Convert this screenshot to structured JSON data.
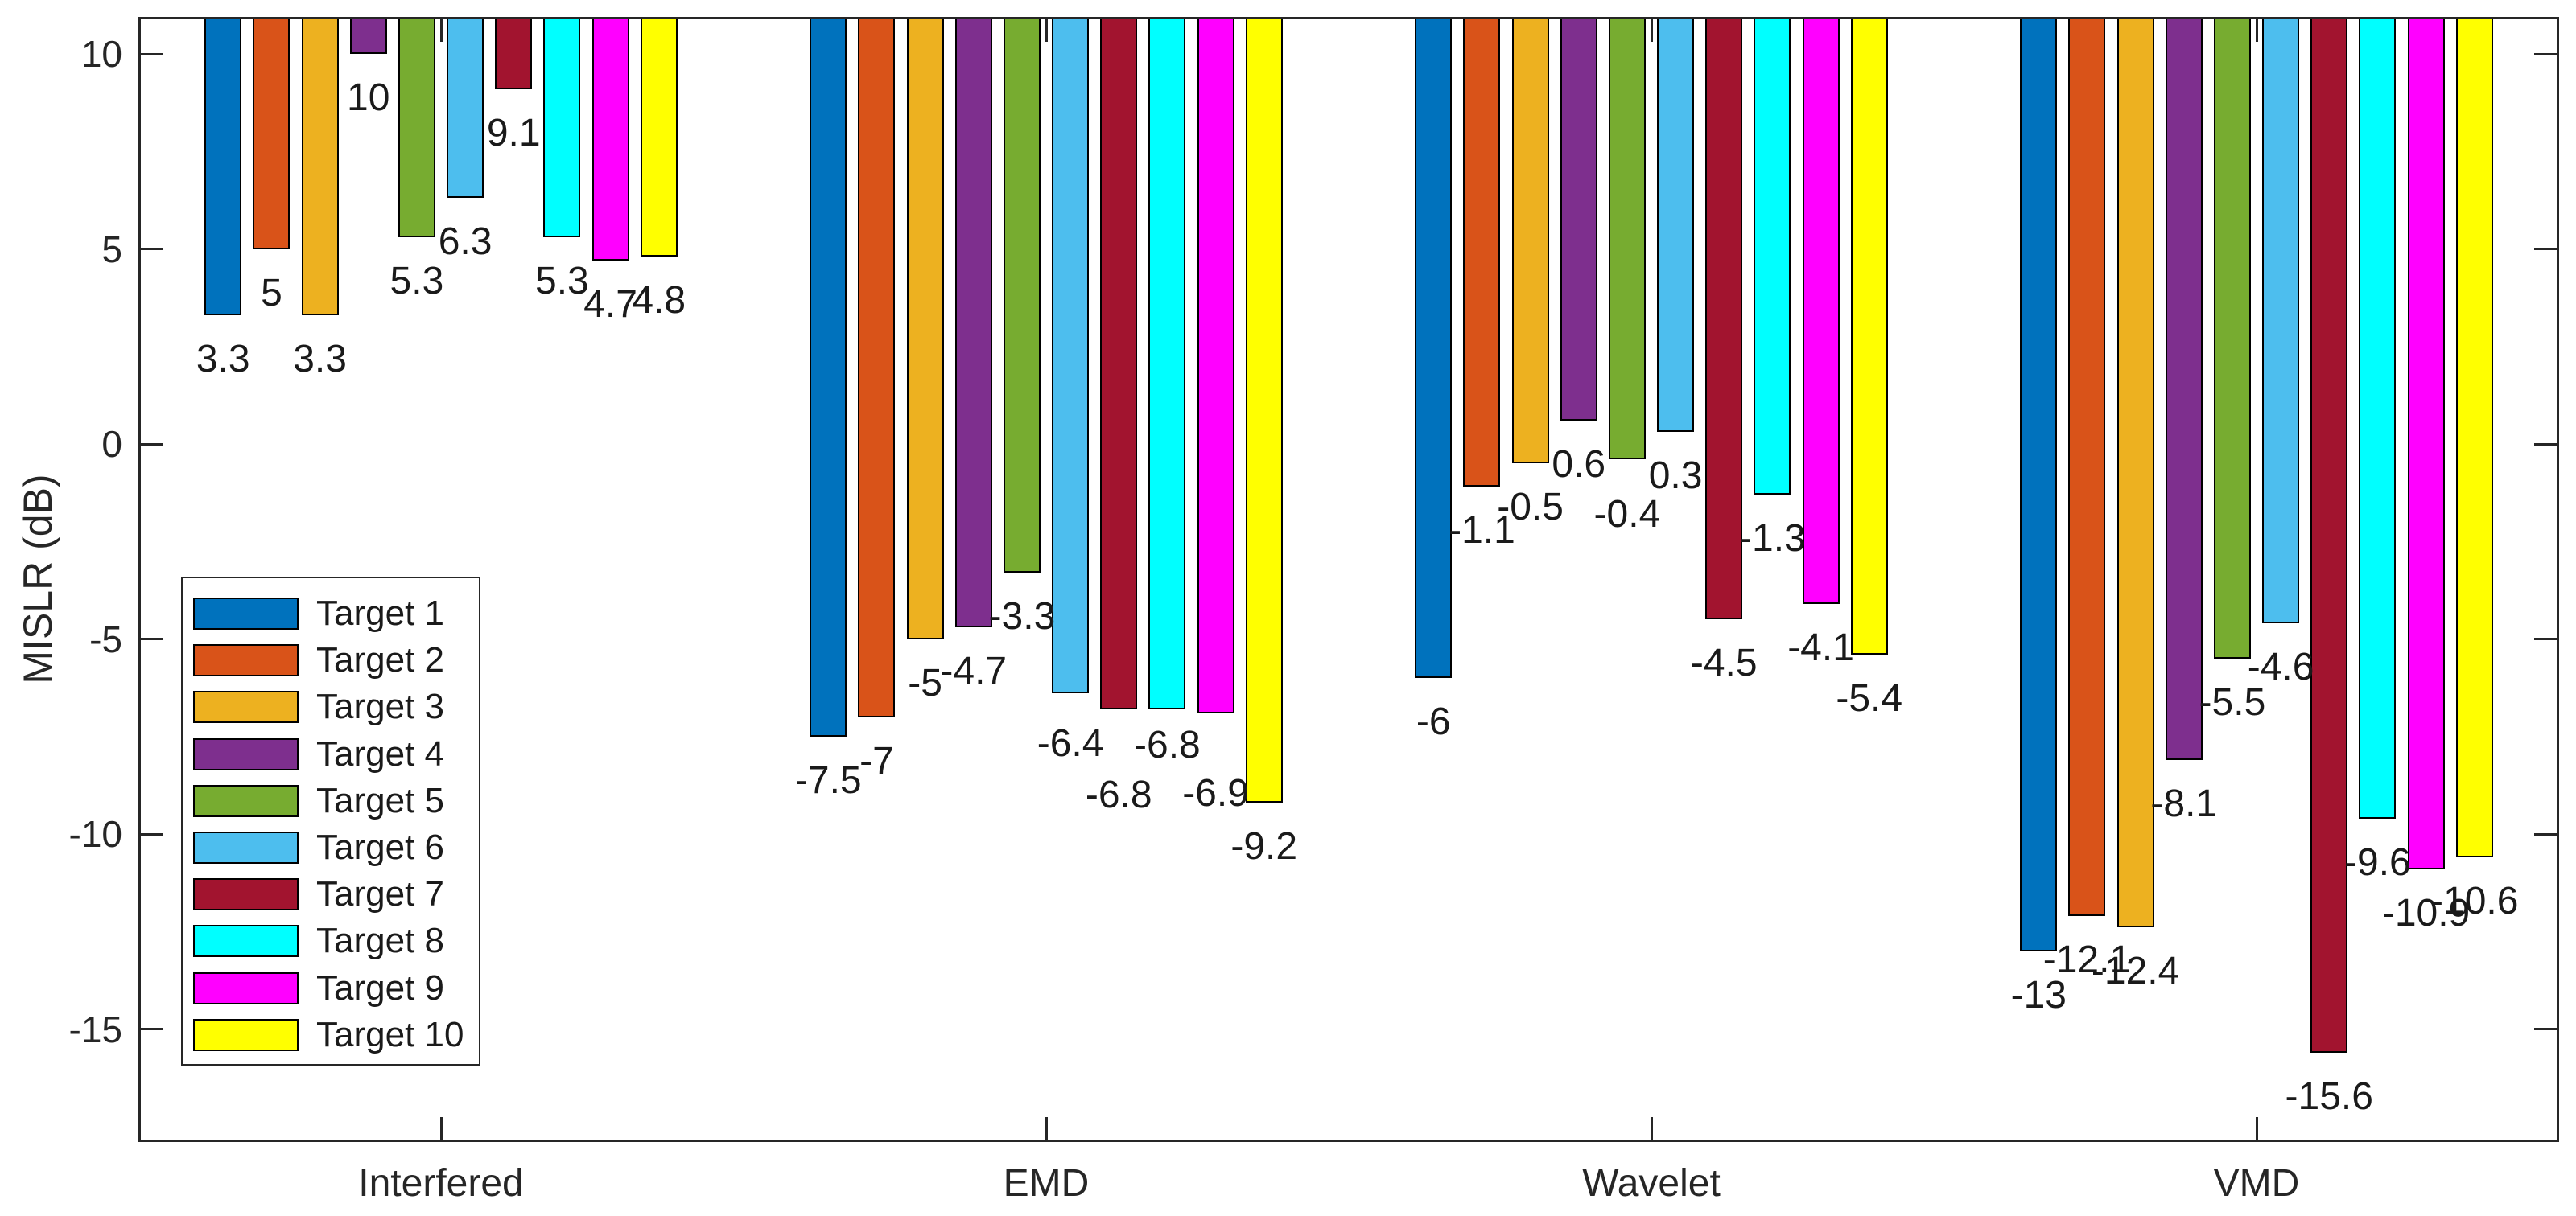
{
  "chart_data": {
    "type": "bar",
    "title": "",
    "xlabel": "",
    "ylabel": "MISLR (dB)",
    "categories": [
      "Interfered",
      "EMD",
      "Wavelet",
      "VMD"
    ],
    "series": [
      {
        "name": "Target 1",
        "color": "#0072BD",
        "values": [
          3.3,
          -7.5,
          -6,
          -13
        ]
      },
      {
        "name": "Target 2",
        "color": "#D95319",
        "values": [
          5,
          -7,
          -1.1,
          -12.1
        ]
      },
      {
        "name": "Target 3",
        "color": "#EDB120",
        "values": [
          3.3,
          -5,
          -0.5,
          -12.4
        ]
      },
      {
        "name": "Target 4",
        "color": "#7E2F8E",
        "values": [
          10,
          -4.7,
          0.6,
          -8.1
        ]
      },
      {
        "name": "Target 5",
        "color": "#77AC30",
        "values": [
          5.3,
          -3.3,
          -0.4,
          -5.5
        ]
      },
      {
        "name": "Target 6",
        "color": "#4DBEEE",
        "values": [
          6.3,
          -6.4,
          0.3,
          -4.6
        ]
      },
      {
        "name": "Target 7",
        "color": "#A2142F",
        "values": [
          9.1,
          -6.8,
          -4.5,
          -15.6
        ]
      },
      {
        "name": "Target 8",
        "color": "#00FFFF",
        "values": [
          5.3,
          -6.8,
          -1.3,
          -9.6
        ]
      },
      {
        "name": "Target 9",
        "color": "#FF00FF",
        "values": [
          4.7,
          -6.9,
          -4.1,
          -10.9
        ]
      },
      {
        "name": "Target 10",
        "color": "#FFFF00",
        "values": [
          4.8,
          -9.2,
          -5.4,
          -10.6
        ]
      }
    ],
    "bar_value_labels_shown": true,
    "label_dy_default": 30,
    "label_dy_overrides": {
      "1,5": 38,
      "1,6": 82,
      "1,7": 20,
      "1,8": 75,
      "2,4": 44
    },
    "yticks": [
      10,
      5,
      0,
      -5,
      -10,
      -15
    ],
    "ylim": [
      -17.9,
      10.95
    ],
    "bar_baseline": "top-of-axes",
    "grid": false,
    "legend_position": "left-middle",
    "legend_labels": [
      "Target 1",
      "Target 2",
      "Target 3",
      "Target 4",
      "Target 5",
      "Target 6",
      "Target 7",
      "Target 8",
      "Target 9",
      "Target 10"
    ],
    "axis_color": "#262626",
    "bar_edge_color": "#000000",
    "text_color": "#1a1a1a",
    "background_color": "#ffffff"
  }
}
